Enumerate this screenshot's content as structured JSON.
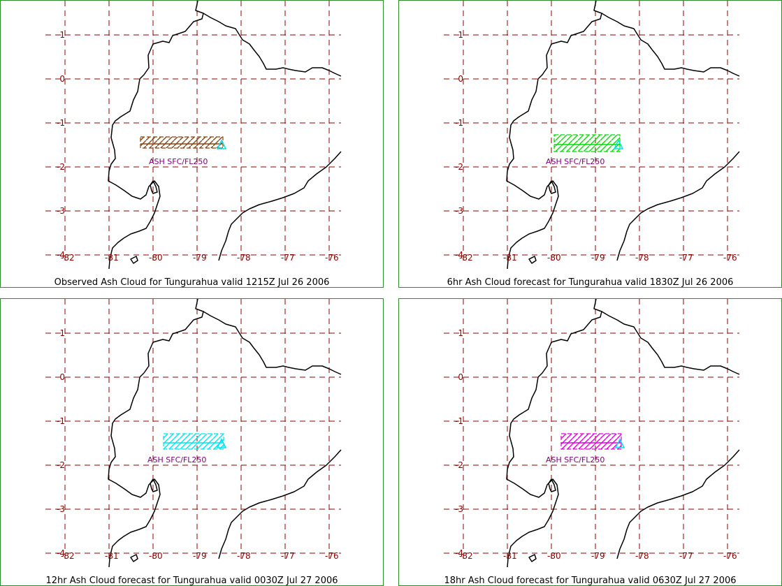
{
  "panels": [
    {
      "caption": "Observed Ash Cloud for Tungurahua valid 1215Z Jul 26 2006",
      "ash_label": "ASH SFC/FL250",
      "ash_color": "#8b4513"
    },
    {
      "caption": "6hr Ash Cloud forecast for Tungurahua valid 1830Z Jul 26 2006",
      "ash_label": "ASH SFC/FL250",
      "ash_color": "#00e000"
    },
    {
      "caption": "12hr Ash Cloud forecast for Tungurahua valid 0030Z Jul 27 2006",
      "ash_label": "ASH SFC/FL250",
      "ash_color": "#00e5ee"
    },
    {
      "caption": "18hr Ash Cloud forecast for Tungurahua valid 0630Z Jul 27 2006",
      "ash_label": "ASH SFC/FL250",
      "ash_color": "#e000e0"
    }
  ],
  "map": {
    "lon_labels": [
      "-82",
      "-81",
      "-80",
      "-79",
      "-78",
      "-77",
      "-76"
    ],
    "lat_labels": [
      "1",
      "0",
      "-1",
      "-2",
      "-3",
      "-4"
    ],
    "grid_color": "#8b0000",
    "label_color": "#8b0000",
    "ash_label_color": "#800080",
    "volcano_marker_color": "#00e5ee",
    "coast_color": "#000000"
  }
}
